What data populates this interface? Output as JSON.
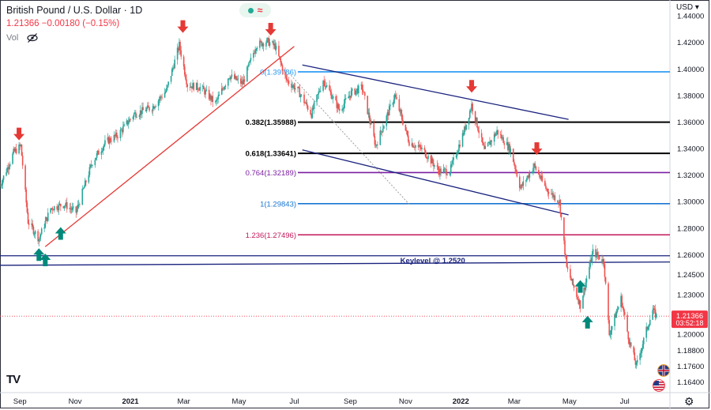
{
  "header": {
    "symbol_title": "British Pound / U.S. Dollar · 1D",
    "price_line": "1.21366  −0.00180 (−0.15%)",
    "vol_label": "Vol"
  },
  "currency_label": "USD",
  "last_price": {
    "value": "1.21366",
    "countdown": "03:52:18"
  },
  "colors": {
    "up": "#26a69a",
    "down": "#ef5350",
    "marker_down": "#e53935",
    "marker_up": "#00897b",
    "trendline": "#e53935",
    "channel": "#1a237e",
    "keylevel": "#1a237e",
    "fib_0": "#2196f3",
    "fib_0382": "#000000",
    "fib_0618": "#000000",
    "fib_0764": "#7b1fa2",
    "fib_1": "#1976d2",
    "fib_1236": "#c2185b",
    "price_badge": "#f23645"
  },
  "icons": [
    "eye-off-icon",
    "gbp-flag-icon",
    "usd-flag-icon",
    "gear-icon",
    "tradingview-logo"
  ],
  "chart_data": {
    "type": "candlestick",
    "y_range": [
      1.156,
      1.452
    ],
    "y_ticks": [
      "1.44000",
      "1.42000",
      "1.40000",
      "1.38000",
      "1.36000",
      "1.34000",
      "1.32000",
      "1.30000",
      "1.28000",
      "1.26000",
      "1.24500",
      "1.23000",
      "1.21366",
      "1.20000",
      "1.18800",
      "1.17600",
      "1.16400"
    ],
    "y_tick_values": [
      1.44,
      1.42,
      1.4,
      1.38,
      1.36,
      1.34,
      1.32,
      1.3,
      1.28,
      1.26,
      1.245,
      1.23,
      1.21366,
      1.2,
      1.188,
      1.176,
      1.164
    ],
    "x_labels": [
      "Sep",
      "Nov",
      "2021",
      "Mar",
      "May",
      "Jul",
      "Sep",
      "Nov",
      "2022",
      "Mar",
      "May",
      "Jul"
    ],
    "x_label_dates": [
      "2020-09-01",
      "2020-11-01",
      "2021-01-01",
      "2021-03-01",
      "2021-05-01",
      "2021-07-01",
      "2021-09-01",
      "2021-11-01",
      "2022-01-01",
      "2022-03-01",
      "2022-05-01",
      "2022-07-01"
    ],
    "x_range": [
      "2020-08-10",
      "2022-08-20"
    ],
    "price_path": [
      [
        "2020-08-10",
        1.312
      ],
      [
        "2020-08-25",
        1.337
      ],
      [
        "2020-09-02",
        1.342
      ],
      [
        "2020-09-10",
        1.285
      ],
      [
        "2020-09-22",
        1.272
      ],
      [
        "2020-10-05",
        1.295
      ],
      [
        "2020-10-20",
        1.298
      ],
      [
        "2020-11-02",
        1.292
      ],
      [
        "2020-11-20",
        1.33
      ],
      [
        "2020-12-05",
        1.345
      ],
      [
        "2020-12-18",
        1.35
      ],
      [
        "2021-01-05",
        1.366
      ],
      [
        "2021-01-25",
        1.371
      ],
      [
        "2021-02-10",
        1.384
      ],
      [
        "2021-02-24",
        1.418
      ],
      [
        "2021-03-05",
        1.388
      ],
      [
        "2021-03-20",
        1.386
      ],
      [
        "2021-04-05",
        1.374
      ],
      [
        "2021-04-20",
        1.395
      ],
      [
        "2021-05-05",
        1.389
      ],
      [
        "2021-05-20",
        1.418
      ],
      [
        "2021-06-01",
        1.421
      ],
      [
        "2021-06-10",
        1.417
      ],
      [
        "2021-06-22",
        1.392
      ],
      [
        "2021-07-05",
        1.384
      ],
      [
        "2021-07-20",
        1.366
      ],
      [
        "2021-08-02",
        1.392
      ],
      [
        "2021-08-20",
        1.369
      ],
      [
        "2021-09-02",
        1.382
      ],
      [
        "2021-09-14",
        1.386
      ],
      [
        "2021-09-29",
        1.342
      ],
      [
        "2021-10-20",
        1.38
      ],
      [
        "2021-11-05",
        1.345
      ],
      [
        "2021-11-20",
        1.339
      ],
      [
        "2021-12-08",
        1.323
      ],
      [
        "2021-12-20",
        1.323
      ],
      [
        "2022-01-05",
        1.354
      ],
      [
        "2022-01-13",
        1.373
      ],
      [
        "2022-01-27",
        1.338
      ],
      [
        "2022-02-10",
        1.353
      ],
      [
        "2022-02-25",
        1.339
      ],
      [
        "2022-03-08",
        1.31
      ],
      [
        "2022-03-23",
        1.327
      ],
      [
        "2022-04-05",
        1.31
      ],
      [
        "2022-04-20",
        1.3
      ],
      [
        "2022-04-28",
        1.25
      ],
      [
        "2022-05-13",
        1.222
      ],
      [
        "2022-05-27",
        1.262
      ],
      [
        "2022-06-08",
        1.255
      ],
      [
        "2022-06-14",
        1.2
      ],
      [
        "2022-06-27",
        1.227
      ],
      [
        "2022-07-06",
        1.195
      ],
      [
        "2022-07-14",
        1.176
      ],
      [
        "2022-07-25",
        1.203
      ],
      [
        "2022-08-01",
        1.218
      ],
      [
        "2022-08-05",
        1.21366
      ]
    ],
    "fib_levels": [
      {
        "label": "0(1.39786)",
        "value": 1.39786,
        "color_key": "fib_0"
      },
      {
        "label": "0.382(1.35988)",
        "value": 1.35988,
        "color_key": "fib_0382"
      },
      {
        "label": "0.618(1.33641)",
        "value": 1.33641,
        "color_key": "fib_0618"
      },
      {
        "label": "0.764(1.32189)",
        "value": 1.32189,
        "color_key": "fib_0764"
      },
      {
        "label": "1(1.29843)",
        "value": 1.29843,
        "color_key": "fib_1"
      },
      {
        "label": "1.236(1.27496)",
        "value": 1.27496,
        "color_key": "fib_1236"
      }
    ],
    "keylevel": {
      "label": "Keylevel @ 1.2520",
      "value": 1.252
    },
    "trendlines": [
      {
        "name": "uptrend",
        "from": [
          "2020-09-29",
          1.266
        ],
        "to": [
          "2021-07-01",
          1.417
        ],
        "color_key": "trendline"
      },
      {
        "name": "channel-upper",
        "from": [
          "2021-07-10",
          1.403
        ],
        "to": [
          "2022-04-30",
          1.362
        ],
        "color_key": "channel"
      },
      {
        "name": "channel-lower",
        "from": [
          "2021-07-10",
          1.339
        ],
        "to": [
          "2022-04-30",
          1.29
        ],
        "color_key": "channel"
      },
      {
        "name": "keylevel-upper",
        "from": [
          "2020-08-10",
          1.2592
        ],
        "to": [
          "2022-08-20",
          1.2592
        ],
        "color_key": "keylevel"
      },
      {
        "name": "keylevel-lower",
        "from": [
          "2020-08-10",
          1.252
        ],
        "to": [
          "2022-08-20",
          1.2545
        ],
        "color_key": "keylevel"
      }
    ],
    "arrows_down": [
      [
        "2020-08-31",
        1.345
      ],
      [
        "2021-02-28",
        1.426
      ],
      [
        "2021-06-05",
        1.424
      ],
      [
        "2022-01-13",
        1.381
      ],
      [
        "2022-03-26",
        1.334
      ]
    ],
    "arrows_up": [
      [
        "2020-09-22",
        1.266
      ],
      [
        "2020-09-29",
        1.262
      ],
      [
        "2020-10-16",
        1.282
      ],
      [
        "2022-05-13",
        1.242
      ],
      [
        "2022-05-21",
        1.215
      ]
    ]
  }
}
